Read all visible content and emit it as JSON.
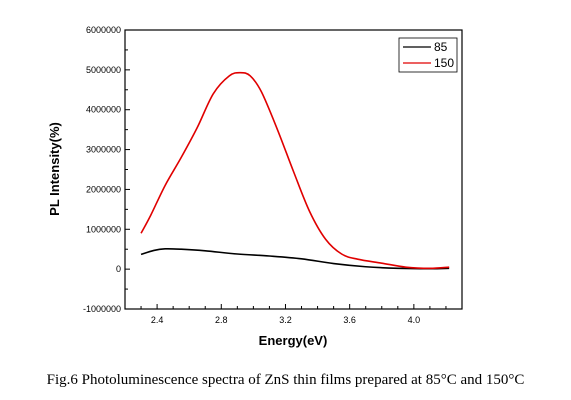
{
  "chart_data": {
    "type": "line",
    "xlabel": "Energy(eV)",
    "ylabel": "PL Intensity(%)",
    "xlim": [
      2.2,
      4.3
    ],
    "ylim": [
      -1000000,
      6000000
    ],
    "xticks": [
      "2.4",
      "2.8",
      "3.2",
      "3.6",
      "4.0"
    ],
    "yticks": [
      "-1000000",
      "0",
      "1000000",
      "2000000",
      "3000000",
      "4000000",
      "5000000",
      "6000000"
    ],
    "legend_position": "top-right",
    "grid": false,
    "series": [
      {
        "name": "85",
        "color": "#000000",
        "x": [
          2.3,
          2.38,
          2.45,
          2.55,
          2.7,
          2.9,
          3.1,
          3.3,
          3.5,
          3.7,
          3.9,
          4.1,
          4.22
        ],
        "y": [
          370000,
          470000,
          510000,
          500000,
          460000,
          380000,
          330000,
          260000,
          140000,
          60000,
          20000,
          10000,
          20000
        ]
      },
      {
        "name": "150",
        "color": "#e00000",
        "x": [
          2.3,
          2.36,
          2.45,
          2.55,
          2.65,
          2.75,
          2.85,
          2.92,
          2.98,
          3.05,
          3.15,
          3.25,
          3.35,
          3.45,
          3.55,
          3.65,
          3.8,
          3.95,
          4.1,
          4.22
        ],
        "y": [
          900000,
          1350000,
          2100000,
          2800000,
          3550000,
          4400000,
          4850000,
          4930000,
          4850000,
          4450000,
          3500000,
          2450000,
          1450000,
          750000,
          380000,
          250000,
          150000,
          50000,
          20000,
          50000
        ]
      }
    ]
  },
  "caption": "Fig.6 Photoluminescence spectra of ZnS thin films prepared at 85°C and 150°C"
}
